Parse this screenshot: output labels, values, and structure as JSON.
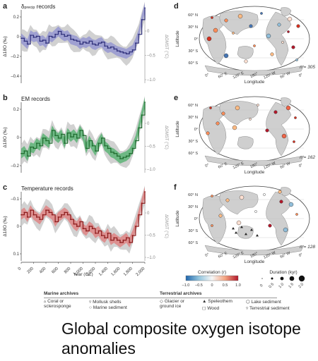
{
  "panels": {
    "a": {
      "letter": "a",
      "title_main": "δ",
      "title_sub": "precip",
      "title_rest": " records"
    },
    "b": {
      "letter": "b",
      "title": "EM records"
    },
    "c": {
      "letter": "c",
      "title": "Temperature records"
    },
    "d": {
      "letter": "d",
      "n_label": "n = 305"
    },
    "e": {
      "letter": "e",
      "n_label": "n = 162"
    },
    "f": {
      "letter": "f",
      "n_label": "n = 128"
    }
  },
  "map_labels": {
    "lat": [
      "60° N",
      "30° N",
      "0°",
      "30° S",
      "60° S"
    ],
    "lon": [
      "0°",
      "60° E",
      "120° E",
      "180°",
      "120° W",
      "60° W",
      "0°"
    ],
    "xlabel": "Longitude",
    "ylabel": "Latitude"
  },
  "axis_labels": {
    "left_ylabel": "Δ18O (‰)",
    "right_ylabel": "ΔGMST (°C)"
  },
  "chart_data": [
    {
      "type": "line",
      "panel": "a",
      "title": "δprecip records",
      "color": "#2e2f7a",
      "band_color": "#8d8fd0",
      "x": [
        0,
        50,
        100,
        150,
        200,
        250,
        300,
        350,
        400,
        450,
        500,
        550,
        600,
        650,
        700,
        750,
        800,
        850,
        900,
        950,
        1000,
        1050,
        1100,
        1150,
        1200,
        1250,
        1300,
        1350,
        1400,
        1450,
        1500,
        1550,
        1600,
        1650,
        1700,
        1750,
        1800,
        1850,
        1900,
        1950,
        2000
      ],
      "y": [
        0.01,
        -0.02,
        -0.05,
        0.04,
        0.02,
        0.03,
        -0.02,
        -0.01,
        -0.04,
        0.03,
        0.02,
        0.05,
        0.08,
        0.05,
        0.03,
        0.04,
        0.0,
        -0.01,
        -0.02,
        -0.05,
        -0.03,
        -0.04,
        -0.02,
        -0.05,
        -0.06,
        -0.04,
        -0.03,
        -0.07,
        -0.09,
        -0.08,
        -0.1,
        -0.12,
        -0.13,
        -0.14,
        -0.15,
        -0.13,
        -0.11,
        -0.04,
        0.05,
        0.2,
        0.32
      ],
      "ylim_left": [
        -0.45,
        0.3
      ],
      "yticks_left": [
        "0.2",
        "0",
        "–0.2",
        "–0.4"
      ],
      "yticks_right": [
        "0",
        "–0.5",
        "–1.0"
      ],
      "right_ylabel": "ΔGMST (°C)"
    },
    {
      "type": "line",
      "panel": "b",
      "title": "EM records",
      "color": "#1f6b2e",
      "band_color": "#4caf6a",
      "x": [
        0,
        50,
        100,
        150,
        200,
        250,
        300,
        350,
        400,
        450,
        500,
        550,
        600,
        650,
        700,
        750,
        800,
        850,
        900,
        950,
        1000,
        1050,
        1100,
        1150,
        1200,
        1250,
        1300,
        1350,
        1400,
        1450,
        1500,
        1550,
        1600,
        1650,
        1700,
        1750,
        1800,
        1850,
        1900,
        1950,
        2000
      ],
      "y": [
        -0.1,
        -0.08,
        -0.12,
        -0.05,
        -0.06,
        -0.02,
        -0.04,
        0.02,
        0.0,
        -0.02,
        0.08,
        0.04,
        0.02,
        0.05,
        -0.02,
        0.06,
        0.03,
        0.05,
        0.02,
        0.08,
        0.04,
        -0.06,
        0.0,
        -0.04,
        -0.08,
        -0.02,
        0.02,
        -0.04,
        -0.06,
        -0.09,
        -0.1,
        -0.12,
        -0.14,
        -0.13,
        -0.12,
        -0.1,
        -0.06,
        0.0,
        0.1,
        0.2,
        0.3
      ],
      "ylim_left": [
        -0.25,
        0.3
      ],
      "yticks_left": [
        "0.2",
        "0",
        "–0.2"
      ],
      "yticks_right": [
        "0",
        "–0.5",
        "–1.0"
      ],
      "right_ylabel": "ΔGMST (°C)"
    },
    {
      "type": "line",
      "panel": "c",
      "title": "Temperature records",
      "color": "#8b1a1a",
      "band_color": "#e07a7a",
      "x": [
        0,
        50,
        100,
        150,
        200,
        250,
        300,
        350,
        400,
        450,
        500,
        550,
        600,
        650,
        700,
        750,
        800,
        850,
        900,
        950,
        1000,
        1050,
        1100,
        1150,
        1200,
        1250,
        1300,
        1350,
        1400,
        1450,
        1500,
        1550,
        1600,
        1650,
        1700,
        1750,
        1800,
        1850,
        1900,
        1950,
        2000
      ],
      "y": [
        -0.05,
        -0.06,
        -0.04,
        -0.07,
        -0.05,
        -0.04,
        -0.03,
        -0.05,
        -0.07,
        -0.06,
        -0.05,
        -0.02,
        -0.04,
        -0.05,
        -0.06,
        -0.05,
        -0.03,
        -0.01,
        0.0,
        -0.02,
        0.01,
        0.02,
        0.0,
        0.01,
        0.03,
        0.02,
        0.04,
        0.05,
        0.03,
        0.06,
        0.05,
        0.06,
        0.07,
        0.06,
        0.05,
        0.07,
        0.04,
        0.0,
        -0.05,
        -0.1,
        -0.15
      ],
      "ylim_left": [
        0.15,
        -0.15
      ],
      "yticks_left": [
        "–0.1",
        "0",
        "0.1"
      ],
      "yticks_right": [
        "0",
        "–0.5",
        "–1.0"
      ],
      "right_ylabel": "ΔGMST (°C)"
    }
  ],
  "x_axis": {
    "ticks": [
      "0",
      "200",
      "400",
      "600",
      "800",
      "1,000",
      "1,200",
      "1,400",
      "1,600",
      "1,800",
      "2,000"
    ],
    "label": "Year (CE)"
  },
  "colorbar": {
    "title": "Correlation (r)",
    "ticks": [
      "–1.0",
      "–0.5",
      "0",
      "0.5",
      "1.0"
    ]
  },
  "duration": {
    "title": "Duration (kyr)",
    "ticks": [
      "0",
      "0.5",
      "1.0",
      "1.5",
      "2.0"
    ]
  },
  "legend": {
    "marine_title": "Marine archives",
    "marine": [
      "Coral or sclerosponge",
      "Mollusk shells",
      "Marine sediment"
    ],
    "terrestrial_title": "Terrestrial archives",
    "terrestrial": [
      "Glacier or ground ice",
      "Speleothem",
      "Lake sediment",
      "Wood",
      "Terrestrial sediment"
    ]
  },
  "caption": "Global composite oxygen isotope anomalies"
}
